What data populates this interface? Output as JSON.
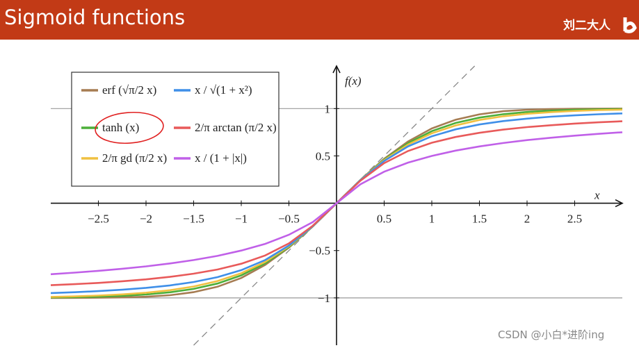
{
  "header": {
    "title": "Sigmoid functions",
    "author": "刘二大人"
  },
  "watermark": "CSDN @小白*进阶ing",
  "chart_data": {
    "type": "line",
    "x_label": "x",
    "y_label": "f(x)",
    "x": [
      -3,
      -2.75,
      -2.5,
      -2.25,
      -2,
      -1.75,
      -1.5,
      -1.25,
      -1,
      -0.75,
      -0.5,
      -0.25,
      0,
      0.25,
      0.5,
      0.75,
      1,
      1.25,
      1.5,
      1.75,
      2,
      2.25,
      2.5,
      2.75,
      3
    ],
    "series": [
      {
        "name": "erf (√π/2 x)",
        "color": "#a67c52",
        "values": [
          -1.0,
          -0.9995,
          -0.998,
          -0.995,
          -0.988,
          -0.972,
          -0.939,
          -0.882,
          -0.79,
          -0.652,
          -0.469,
          -0.246,
          0,
          0.246,
          0.469,
          0.652,
          0.79,
          0.882,
          0.939,
          0.972,
          0.988,
          0.995,
          0.998,
          0.9995,
          1.0
        ]
      },
      {
        "name": "tanh (x)",
        "color": "#4caf3a",
        "values": [
          -0.995,
          -0.992,
          -0.987,
          -0.978,
          -0.964,
          -0.941,
          -0.905,
          -0.848,
          -0.762,
          -0.635,
          -0.462,
          -0.245,
          0,
          0.245,
          0.462,
          0.635,
          0.762,
          0.848,
          0.905,
          0.941,
          0.964,
          0.978,
          0.987,
          0.992,
          0.995
        ]
      },
      {
        "name": "2/π gd (π/2 x)",
        "color": "#f0c040",
        "values": [
          -0.989,
          -0.984,
          -0.975,
          -0.963,
          -0.945,
          -0.919,
          -0.88,
          -0.822,
          -0.739,
          -0.62,
          -0.455,
          -0.244,
          0,
          0.244,
          0.455,
          0.62,
          0.739,
          0.822,
          0.88,
          0.919,
          0.945,
          0.963,
          0.975,
          0.984,
          0.989
        ]
      },
      {
        "name": "x / √(1 + x²)",
        "color": "#3f8fe8",
        "values": [
          -0.949,
          -0.94,
          -0.928,
          -0.914,
          -0.894,
          -0.868,
          -0.832,
          -0.781,
          -0.707,
          -0.6,
          -0.447,
          -0.243,
          0,
          0.243,
          0.447,
          0.6,
          0.707,
          0.781,
          0.832,
          0.868,
          0.894,
          0.914,
          0.928,
          0.94,
          0.949
        ]
      },
      {
        "name": "2/π arctan (π/2 x)",
        "color": "#e85a5a",
        "values": [
          -0.866,
          -0.855,
          -0.842,
          -0.824,
          -0.804,
          -0.778,
          -0.744,
          -0.7,
          -0.639,
          -0.552,
          -0.424,
          -0.238,
          0,
          0.238,
          0.424,
          0.552,
          0.639,
          0.7,
          0.744,
          0.778,
          0.804,
          0.824,
          0.842,
          0.855,
          0.866
        ]
      },
      {
        "name": "x / (1 + |x|)",
        "color": "#c060e8",
        "values": [
          -0.75,
          -0.733,
          -0.714,
          -0.692,
          -0.667,
          -0.636,
          -0.6,
          -0.556,
          -0.5,
          -0.429,
          -0.333,
          -0.2,
          0,
          0.2,
          0.333,
          0.429,
          0.5,
          0.556,
          0.6,
          0.636,
          0.667,
          0.692,
          0.714,
          0.733,
          0.75
        ]
      }
    ],
    "xlim": [
      -3,
      3
    ],
    "ylim": [
      -1.5,
      1.45
    ],
    "xticks": [
      {
        "value": -2.5,
        "label": "−2.5"
      },
      {
        "value": -2,
        "label": "−2"
      },
      {
        "value": -1.5,
        "label": "−1.5"
      },
      {
        "value": -1,
        "label": "−1"
      },
      {
        "value": -0.5,
        "label": "−0.5"
      },
      0.5,
      1,
      1.5,
      2,
      2.5
    ],
    "yticks": [
      {
        "value": -1,
        "label": "−1"
      },
      {
        "value": -0.5,
        "label": "−0.5"
      },
      0.5,
      1
    ],
    "reference_lines": [
      -1,
      1
    ],
    "legend": "upper left"
  }
}
